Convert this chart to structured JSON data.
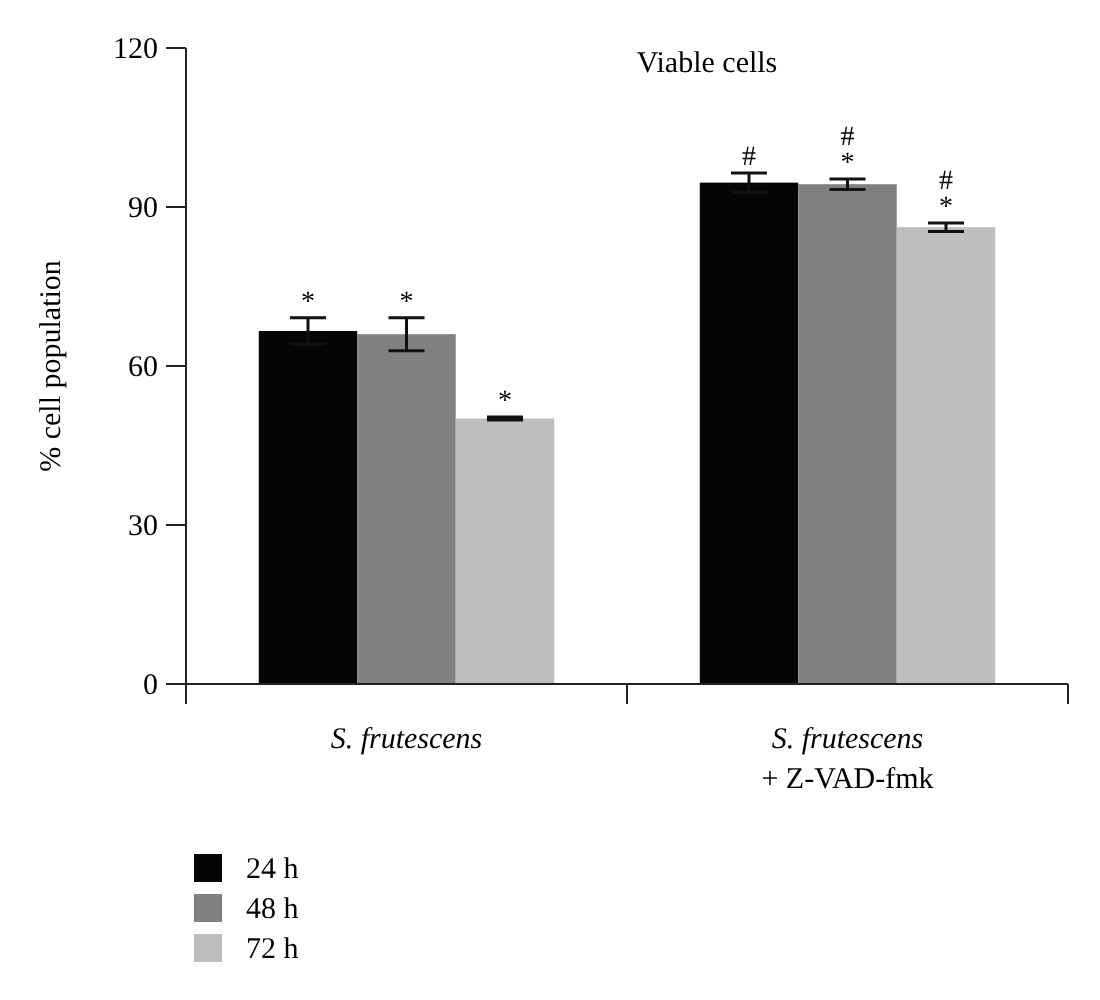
{
  "chart_data": {
    "type": "bar",
    "title": "Viable cells",
    "ylabel": "% cell population",
    "categories": [
      "S. frutescens",
      "S. frutescens + Z-VAD-fmk"
    ],
    "series": [
      {
        "name": "24 h",
        "color": "#050505",
        "values": [
          66.6,
          94.6
        ],
        "errors": [
          2.5,
          1.8
        ],
        "value_labels": [
          "*",
          "#"
        ]
      },
      {
        "name": "48 h",
        "color": "#808080",
        "values": [
          66.0,
          94.3
        ],
        "errors": [
          3.1,
          1.0
        ],
        "value_labels": [
          "*",
          "#\n*"
        ]
      },
      {
        "name": "72 h",
        "color": "#bebebe",
        "values": [
          50.1,
          86.2
        ],
        "errors": [
          0.3,
          0.8
        ],
        "value_labels": [
          "*",
          "#\n*"
        ]
      }
    ],
    "ylim": [
      0,
      120
    ],
    "yticks": [
      0,
      30,
      60,
      90,
      120
    ],
    "grid": false,
    "legend": "bottom left"
  }
}
